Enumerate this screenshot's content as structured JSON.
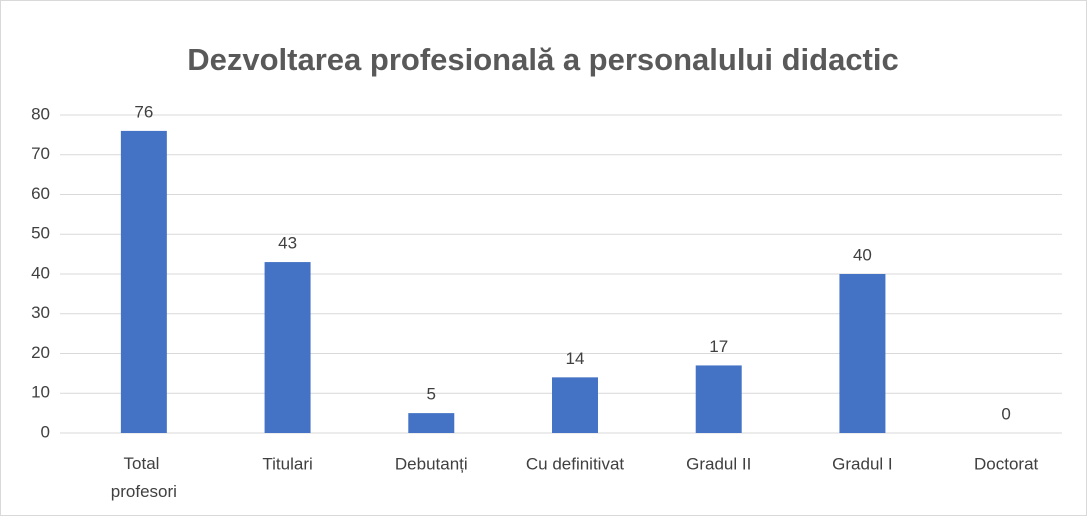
{
  "chart_data": {
    "type": "bar",
    "title": "Dezvoltarea profesională a personalului didactic",
    "categories": [
      "Total profesori",
      "Titulari",
      "Debutanți",
      "Cu definitivat",
      "Gradul II",
      "Gradul I",
      "Doctorat"
    ],
    "values": [
      76,
      43,
      5,
      14,
      17,
      40,
      0
    ],
    "color": "#4472c4",
    "ylim": [
      0,
      80
    ],
    "yticks": [
      0,
      10,
      20,
      30,
      40,
      50,
      60,
      70,
      80
    ],
    "grid": true
  }
}
